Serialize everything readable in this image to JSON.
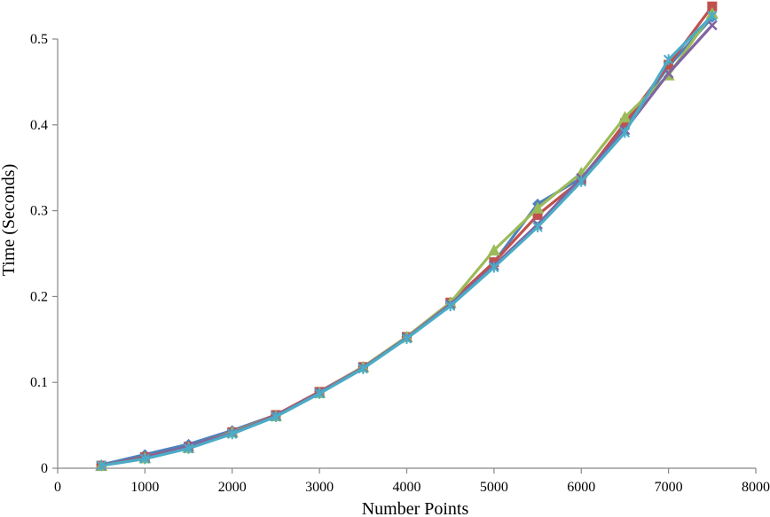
{
  "chart_data": {
    "type": "line",
    "title": "",
    "xlabel": "Number Points",
    "ylabel": "Time (Seconds)",
    "xlim": [
      0,
      8000
    ],
    "ylim": [
      0,
      0.5
    ],
    "x_ticks": [
      0,
      1000,
      2000,
      3000,
      4000,
      5000,
      6000,
      7000,
      8000
    ],
    "x_tick_labels": [
      "0",
      "1000",
      "2000",
      "3000",
      "4000",
      "5000",
      "6000",
      "7000",
      "8000"
    ],
    "y_ticks": [
      0,
      0.1,
      0.2,
      0.3,
      0.4,
      0.5
    ],
    "y_tick_labels": [
      "0",
      "0.1",
      "0.2",
      "0.3",
      "0.4",
      "0.5"
    ],
    "grid": false,
    "legend": "none",
    "x": [
      500,
      1000,
      1500,
      2000,
      2500,
      3000,
      3500,
      4000,
      4500,
      5000,
      5500,
      6000,
      6500,
      7000,
      7500
    ],
    "series": [
      {
        "color": "#4F81BD",
        "marker": "diamond",
        "values": [
          0.004,
          0.016,
          0.028,
          0.044,
          0.062,
          0.089,
          0.118,
          0.153,
          0.193,
          0.24,
          0.308,
          0.338,
          0.398,
          0.468,
          0.525
        ]
      },
      {
        "color": "#C0504D",
        "marker": "square",
        "values": [
          0.003,
          0.013,
          0.025,
          0.042,
          0.062,
          0.089,
          0.118,
          0.153,
          0.193,
          0.24,
          0.295,
          0.336,
          0.402,
          0.47,
          0.538
        ]
      },
      {
        "color": "#9BBB59",
        "marker": "triangle",
        "values": [
          0.003,
          0.012,
          0.024,
          0.042,
          0.061,
          0.088,
          0.118,
          0.153,
          0.193,
          0.254,
          0.303,
          0.344,
          0.409,
          0.458,
          0.53
        ]
      },
      {
        "color": "#8064A2",
        "marker": "x",
        "values": [
          0.003,
          0.012,
          0.025,
          0.041,
          0.061,
          0.088,
          0.117,
          0.152,
          0.191,
          0.236,
          0.284,
          0.338,
          0.394,
          0.46,
          0.516
        ]
      },
      {
        "color": "#4BACC6",
        "marker": "star",
        "values": [
          0.003,
          0.011,
          0.023,
          0.04,
          0.06,
          0.087,
          0.116,
          0.151,
          0.189,
          0.234,
          0.281,
          0.334,
          0.391,
          0.476,
          0.527
        ]
      }
    ]
  }
}
